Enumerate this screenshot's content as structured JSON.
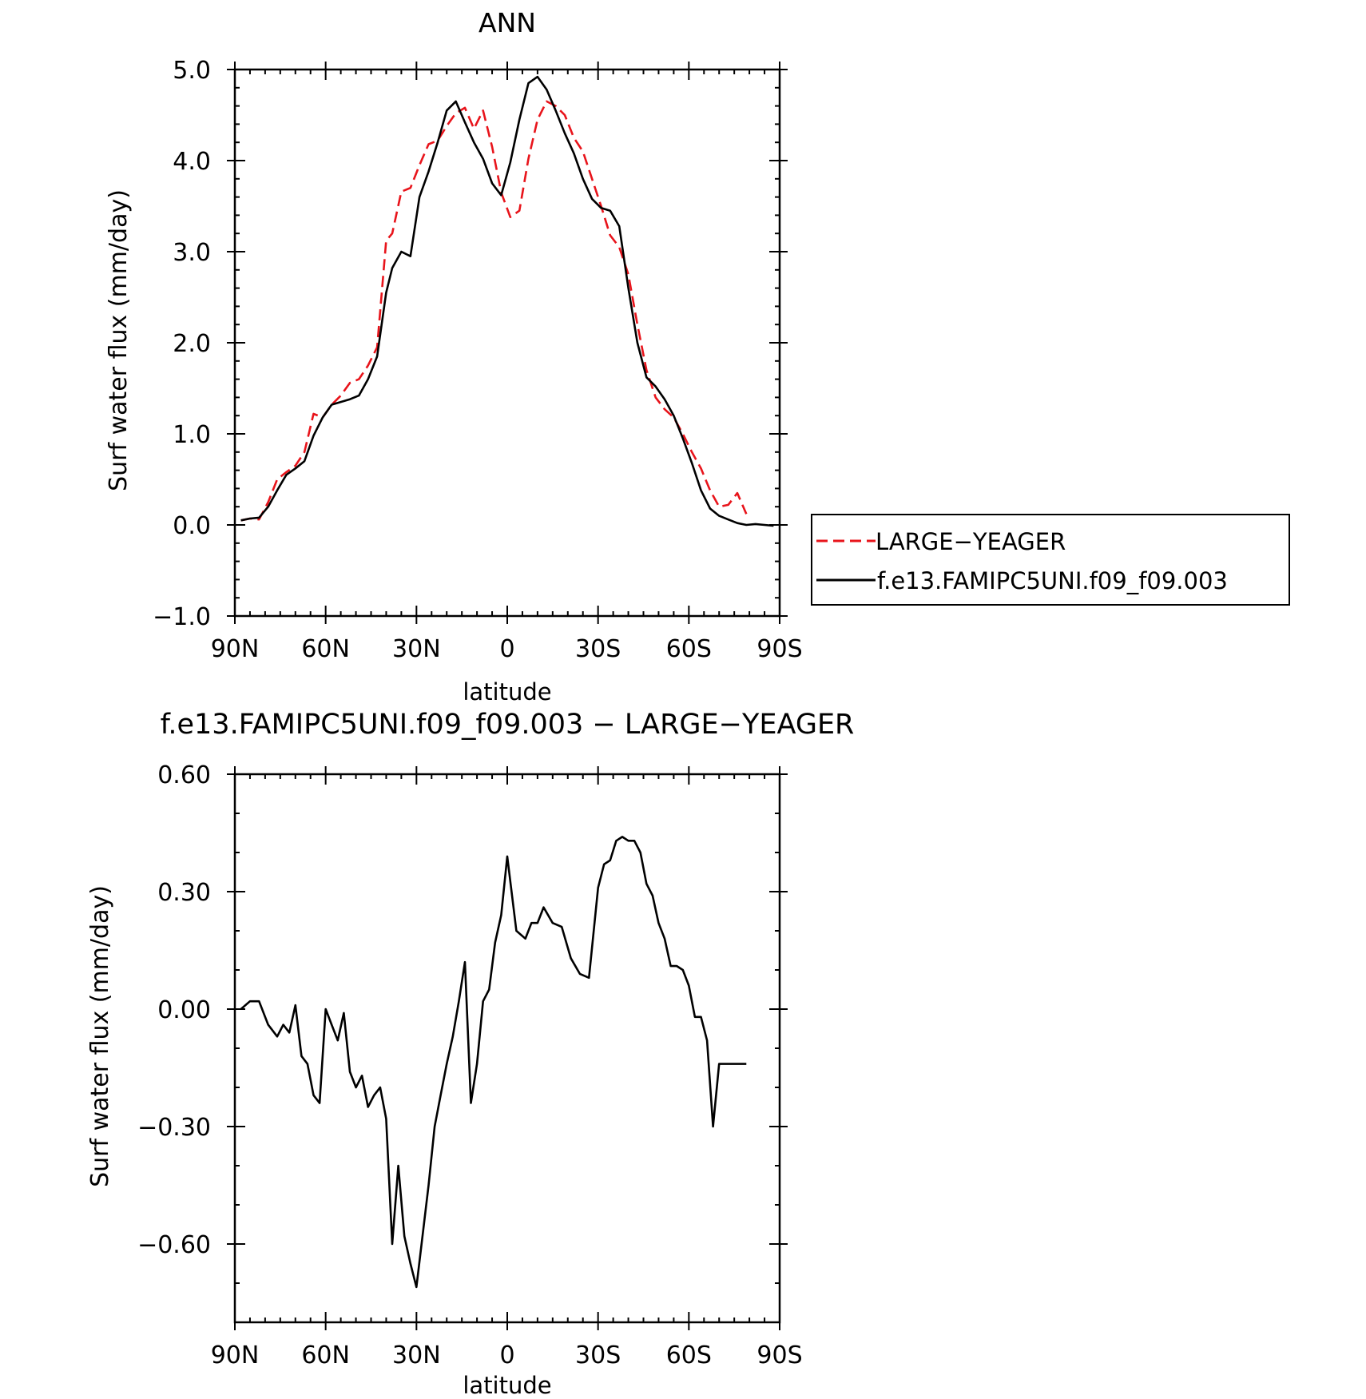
{
  "chart_data": [
    {
      "type": "line",
      "title": "ANN",
      "xlabel": "latitude",
      "ylabel": "Surf water flux (mm/day)",
      "xlim": [
        90,
        -90
      ],
      "ylim": [
        -1.0,
        5.0
      ],
      "x_ticks": [
        90,
        60,
        30,
        0,
        -30,
        -60,
        -90
      ],
      "x_tick_labels": [
        "90N",
        "60N",
        "30N",
        "0",
        "30S",
        "60S",
        "90S"
      ],
      "y_ticks": [
        -1.0,
        0.0,
        1.0,
        2.0,
        3.0,
        4.0,
        5.0
      ],
      "y_tick_labels": [
        "−1.0",
        "0.0",
        "1.0",
        "2.0",
        "3.0",
        "4.0",
        "5.0"
      ],
      "legend": {
        "position": "right"
      },
      "series": [
        {
          "name": "LARGE−YEAGER",
          "color": "#e8141b",
          "dash": "dashed",
          "x": [
            88,
            85,
            82,
            79,
            76,
            73,
            70,
            67,
            64,
            61,
            58,
            55,
            52,
            49,
            46,
            43,
            40,
            38,
            35,
            32,
            29,
            26,
            23,
            20,
            17,
            14,
            11,
            8,
            5,
            2,
            -1,
            -4,
            -7,
            -10,
            -13,
            -16,
            -19,
            -22,
            -25,
            -28,
            -31,
            -34,
            -37,
            -40,
            -43,
            -46,
            -49,
            -52,
            -55,
            -58,
            -61,
            -64,
            -67,
            -70,
            -73,
            -76,
            -79
          ],
          "y": [
            0.05,
            0.07,
            0.06,
            0.25,
            0.5,
            0.58,
            0.65,
            0.8,
            1.22,
            1.18,
            1.32,
            1.42,
            1.56,
            1.6,
            1.75,
            1.95,
            3.12,
            3.2,
            3.66,
            3.7,
            3.95,
            4.18,
            4.22,
            4.38,
            4.52,
            4.58,
            4.35,
            4.55,
            4.15,
            3.65,
            3.38,
            3.45,
            4.02,
            4.45,
            4.65,
            4.6,
            4.5,
            4.25,
            4.1,
            3.8,
            3.5,
            3.18,
            3.05,
            2.75,
            2.2,
            1.7,
            1.4,
            1.27,
            1.18,
            1.0,
            0.8,
            0.62,
            0.38,
            0.2,
            0.22,
            0.35,
            0.12
          ]
        },
        {
          "name": "f.e13.FAMIPC5UNI.f09_f09.003",
          "color": "#000000",
          "dash": "solid",
          "x": [
            88,
            85,
            82,
            79,
            76,
            73,
            70,
            67,
            64,
            61,
            58,
            55,
            52,
            49,
            46,
            43,
            40,
            38,
            35,
            32,
            29,
            26,
            23,
            20,
            17,
            14,
            11,
            8,
            5,
            2,
            -1,
            -4,
            -7,
            -10,
            -13,
            -16,
            -19,
            -22,
            -25,
            -28,
            -31,
            -34,
            -37,
            -40,
            -43,
            -46,
            -49,
            -52,
            -55,
            -58,
            -61,
            -64,
            -67,
            -70,
            -73,
            -76,
            -79,
            -82,
            -85,
            -88
          ],
          "y": [
            0.05,
            0.07,
            0.08,
            0.2,
            0.38,
            0.55,
            0.62,
            0.7,
            0.98,
            1.18,
            1.32,
            1.35,
            1.38,
            1.42,
            1.6,
            1.85,
            2.55,
            2.82,
            3.0,
            2.95,
            3.6,
            3.88,
            4.2,
            4.55,
            4.65,
            4.42,
            4.2,
            4.02,
            3.75,
            3.62,
            3.98,
            4.45,
            4.85,
            4.92,
            4.78,
            4.55,
            4.3,
            4.08,
            3.8,
            3.58,
            3.48,
            3.45,
            3.28,
            2.6,
            2.0,
            1.62,
            1.52,
            1.38,
            1.2,
            0.95,
            0.68,
            0.38,
            0.18,
            0.1,
            0.06,
            0.02,
            0.0,
            0.01,
            0.0,
            -0.01
          ]
        }
      ]
    },
    {
      "type": "line",
      "title": "f.e13.FAMIPC5UNI.f09_f09.003 − LARGE−YEAGER",
      "xlabel": "latitude",
      "ylabel": "Surf water flux (mm/day)",
      "xlim": [
        90,
        -90
      ],
      "ylim": [
        -0.8,
        0.6
      ],
      "x_ticks": [
        90,
        60,
        30,
        0,
        -30,
        -60,
        -90
      ],
      "x_tick_labels": [
        "90N",
        "60N",
        "30N",
        "0",
        "30S",
        "60S",
        "90S"
      ],
      "y_ticks": [
        -0.6,
        -0.3,
        0.0,
        0.3,
        0.6
      ],
      "y_tick_labels": [
        "−0.60",
        "−0.30",
        "0.00",
        "0.30",
        "0.60"
      ],
      "series": [
        {
          "color": "#000000",
          "dash": "solid",
          "x": [
            88,
            85,
            82,
            79,
            76,
            74,
            72,
            70,
            68,
            66,
            64,
            62,
            60,
            58,
            56,
            54,
            52,
            50,
            48,
            46,
            44,
            42,
            40,
            38,
            36,
            34,
            32,
            30,
            28,
            26,
            24,
            22,
            20,
            18,
            16,
            14,
            12,
            10,
            8,
            6,
            4,
            2,
            0,
            -3,
            -6,
            -8,
            -10,
            -12,
            -15,
            -18,
            -21,
            -24,
            -27,
            -30,
            -32,
            -34,
            -36,
            -38,
            -40,
            -42,
            -44,
            -46,
            -48,
            -50,
            -52,
            -54,
            -56,
            -58,
            -60,
            -62,
            -64,
            -66,
            -68,
            -70,
            -72,
            -74,
            -76,
            -79
          ],
          "y": [
            0.0,
            0.02,
            0.02,
            -0.04,
            -0.07,
            -0.04,
            -0.06,
            0.01,
            -0.12,
            -0.14,
            -0.22,
            -0.24,
            0.0,
            -0.04,
            -0.08,
            -0.01,
            -0.16,
            -0.2,
            -0.17,
            -0.25,
            -0.22,
            -0.2,
            -0.28,
            -0.6,
            -0.4,
            -0.58,
            -0.65,
            -0.71,
            -0.58,
            -0.45,
            -0.3,
            -0.22,
            -0.14,
            -0.07,
            0.02,
            0.12,
            -0.24,
            -0.14,
            0.02,
            0.05,
            0.17,
            0.24,
            0.39,
            0.2,
            0.18,
            0.22,
            0.22,
            0.26,
            0.22,
            0.21,
            0.13,
            0.09,
            0.08,
            0.31,
            0.37,
            0.38,
            0.43,
            0.44,
            0.43,
            0.43,
            0.4,
            0.32,
            0.29,
            0.22,
            0.18,
            0.11,
            0.11,
            0.1,
            0.06,
            -0.02,
            -0.02,
            -0.08,
            -0.3,
            -0.14,
            -0.14,
            -0.14,
            -0.14,
            -0.14
          ]
        }
      ]
    }
  ]
}
